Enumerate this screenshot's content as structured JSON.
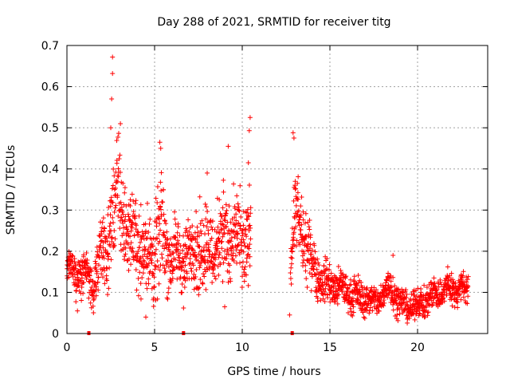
{
  "chart_data": {
    "type": "scatter",
    "title": "Day 288 of 2021, SRMTID for receiver titg",
    "xlabel": "GPS time / hours",
    "ylabel": "SRMTID / TECUs",
    "xlim": [
      0,
      24
    ],
    "ylim": [
      0,
      0.7
    ],
    "xticks": [
      0,
      5,
      10,
      15,
      20
    ],
    "xtick_labels": [
      "0",
      "5",
      "10",
      "15",
      "20"
    ],
    "yticks": [
      0,
      0.1,
      0.2,
      0.3,
      0.4,
      0.5,
      0.6,
      0.7
    ],
    "ytick_labels": [
      "0",
      "0.1",
      "0.2",
      "0.3",
      "0.4",
      "0.5",
      "0.6",
      "0.7"
    ],
    "grid": true,
    "marker": "+",
    "colors": {
      "series": "#ff0000",
      "grid": "#a0a0a0",
      "axis": "#000000"
    },
    "zero_markers_x": [
      1.25,
      6.65,
      12.85
    ],
    "highlight_points": [
      {
        "x": 2.6,
        "y": 0.672
      },
      {
        "x": 2.6,
        "y": 0.632
      },
      {
        "x": 2.55,
        "y": 0.57
      },
      {
        "x": 2.5,
        "y": 0.5
      },
      {
        "x": 3.05,
        "y": 0.51
      },
      {
        "x": 10.45,
        "y": 0.525
      },
      {
        "x": 10.4,
        "y": 0.493
      },
      {
        "x": 10.35,
        "y": 0.415
      },
      {
        "x": 12.9,
        "y": 0.488
      },
      {
        "x": 12.95,
        "y": 0.475
      },
      {
        "x": 5.3,
        "y": 0.465
      },
      {
        "x": 5.35,
        "y": 0.45
      },
      {
        "x": 9.2,
        "y": 0.455
      },
      {
        "x": 8.0,
        "y": 0.39
      },
      {
        "x": 12.7,
        "y": 0.045
      },
      {
        "x": 6.65,
        "y": 0.062
      },
      {
        "x": 4.5,
        "y": 0.04
      },
      {
        "x": 0.6,
        "y": 0.055
      },
      {
        "x": 9.0,
        "y": 0.065
      },
      {
        "x": 18.6,
        "y": 0.19
      }
    ],
    "profile": [
      {
        "x": 0.0,
        "y": 0.15,
        "spread": 0.035
      },
      {
        "x": 0.5,
        "y": 0.13,
        "spread": 0.04
      },
      {
        "x": 1.0,
        "y": 0.15,
        "spread": 0.04
      },
      {
        "x": 1.5,
        "y": 0.13,
        "spread": 0.04
      },
      {
        "x": 2.0,
        "y": 0.2,
        "spread": 0.07
      },
      {
        "x": 2.5,
        "y": 0.26,
        "spread": 0.09
      },
      {
        "x": 3.0,
        "y": 0.32,
        "spread": 0.1
      },
      {
        "x": 3.5,
        "y": 0.21,
        "spread": 0.06
      },
      {
        "x": 4.0,
        "y": 0.24,
        "spread": 0.08
      },
      {
        "x": 4.5,
        "y": 0.2,
        "spread": 0.08
      },
      {
        "x": 5.0,
        "y": 0.22,
        "spread": 0.09
      },
      {
        "x": 5.5,
        "y": 0.24,
        "spread": 0.09
      },
      {
        "x": 6.0,
        "y": 0.17,
        "spread": 0.06
      },
      {
        "x": 6.5,
        "y": 0.17,
        "spread": 0.06
      },
      {
        "x": 7.0,
        "y": 0.19,
        "spread": 0.06
      },
      {
        "x": 7.5,
        "y": 0.24,
        "spread": 0.08
      },
      {
        "x": 8.0,
        "y": 0.22,
        "spread": 0.08
      },
      {
        "x": 8.5,
        "y": 0.22,
        "spread": 0.07
      },
      {
        "x": 9.0,
        "y": 0.22,
        "spread": 0.09
      },
      {
        "x": 9.5,
        "y": 0.2,
        "spread": 0.08
      },
      {
        "x": 10.0,
        "y": 0.22,
        "spread": 0.08
      },
      {
        "x": 10.5,
        "y": 0.25,
        "spread": 0.08
      },
      {
        "x": 12.8,
        "y": 0.2,
        "spread": 0.05
      },
      {
        "x": 13.0,
        "y": 0.28,
        "spread": 0.07
      },
      {
        "x": 13.5,
        "y": 0.25,
        "spread": 0.06
      },
      {
        "x": 14.0,
        "y": 0.18,
        "spread": 0.05
      },
      {
        "x": 14.5,
        "y": 0.13,
        "spread": 0.04
      },
      {
        "x": 15.0,
        "y": 0.11,
        "spread": 0.035
      },
      {
        "x": 16.0,
        "y": 0.1,
        "spread": 0.03
      },
      {
        "x": 17.0,
        "y": 0.095,
        "spread": 0.03
      },
      {
        "x": 17.5,
        "y": 0.075,
        "spread": 0.025
      },
      {
        "x": 18.0,
        "y": 0.085,
        "spread": 0.03
      },
      {
        "x": 18.5,
        "y": 0.11,
        "spread": 0.035
      },
      {
        "x": 19.0,
        "y": 0.075,
        "spread": 0.025
      },
      {
        "x": 19.5,
        "y": 0.07,
        "spread": 0.025
      },
      {
        "x": 20.0,
        "y": 0.075,
        "spread": 0.025
      },
      {
        "x": 21.0,
        "y": 0.09,
        "spread": 0.03
      },
      {
        "x": 22.0,
        "y": 0.11,
        "spread": 0.03
      },
      {
        "x": 22.9,
        "y": 0.12,
        "spread": 0.025
      }
    ],
    "segments": [
      [
        0.0,
        10.5
      ],
      [
        12.75,
        22.9
      ]
    ],
    "approx_point_count": 2000
  }
}
